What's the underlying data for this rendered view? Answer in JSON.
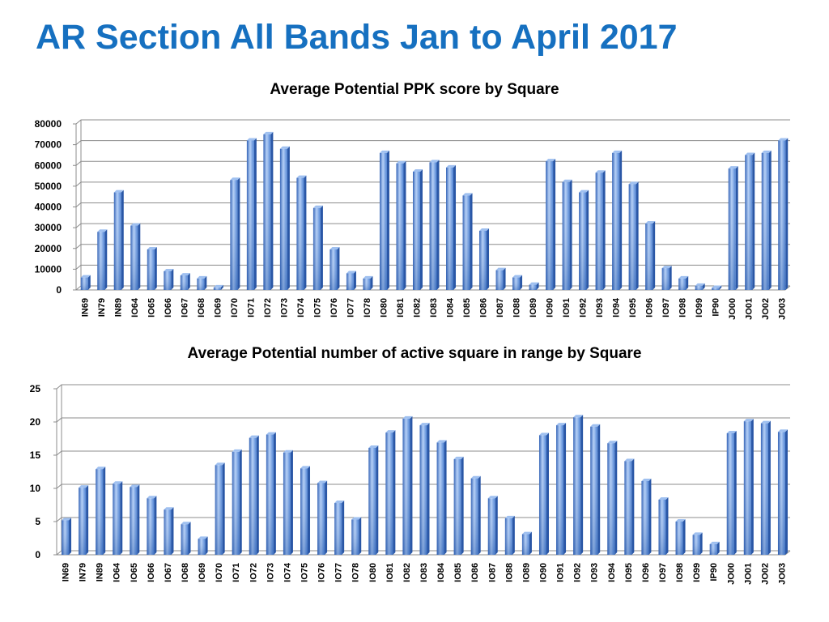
{
  "slide": {
    "title": "AR Section All Bands Jan to April 2017"
  },
  "colors": {
    "title": "#1670c0",
    "bar_light": "#b5d0f7",
    "bar_mid": "#5d8fdf",
    "bar_dark": "#2e5fb5",
    "grid": "#8c8c8c"
  },
  "chart_data": [
    {
      "type": "bar",
      "title": "Average Potential PPK score by Square",
      "xlabel": "",
      "ylabel": "",
      "ylim": [
        0,
        80000
      ],
      "yticks": [
        0,
        10000,
        20000,
        30000,
        40000,
        50000,
        60000,
        70000,
        80000
      ],
      "grid": true,
      "categories": [
        "IN69",
        "IN79",
        "IN89",
        "IO64",
        "IO65",
        "IO66",
        "IO67",
        "IO68",
        "IO69",
        "IO70",
        "IO71",
        "IO72",
        "IO73",
        "IO74",
        "IO75",
        "IO76",
        "IO77",
        "IO78",
        "IO80",
        "IO81",
        "IO82",
        "IO83",
        "IO84",
        "IO85",
        "IO86",
        "IO87",
        "IO88",
        "IO89",
        "IO90",
        "IO91",
        "IO92",
        "IO93",
        "IO94",
        "IO95",
        "IO96",
        "IO97",
        "IO98",
        "IO99",
        "IP90",
        "JO00",
        "JO01",
        "JO02",
        "JO03"
      ],
      "values": [
        6000,
        28000,
        47000,
        31000,
        19500,
        9000,
        7000,
        5500,
        1200,
        53000,
        72000,
        75000,
        68000,
        54000,
        39500,
        19500,
        8000,
        5500,
        66000,
        61000,
        57000,
        61500,
        59000,
        45500,
        28500,
        9500,
        6000,
        2500,
        62000,
        52000,
        47000,
        56500,
        66000,
        51000,
        32000,
        10500,
        5500,
        2000,
        1000,
        58500,
        65000,
        66000,
        72000
      ]
    },
    {
      "type": "bar",
      "title": "Average Potential number of active square in range by Square",
      "xlabel": "",
      "ylabel": "",
      "ylim": [
        0,
        25
      ],
      "yticks": [
        0,
        5,
        10,
        15,
        20,
        25
      ],
      "grid": true,
      "categories": [
        "IN69",
        "IN79",
        "IN89",
        "IO64",
        "IO65",
        "IO66",
        "IO67",
        "IO68",
        "IO69",
        "IO70",
        "IO71",
        "IO72",
        "IO73",
        "IO74",
        "IO75",
        "IO76",
        "IO77",
        "IO78",
        "IO80",
        "IO81",
        "IO82",
        "IO83",
        "IO84",
        "IO85",
        "IO86",
        "IO87",
        "IO88",
        "IO89",
        "IO90",
        "IO91",
        "IO92",
        "IO93",
        "IO94",
        "IO95",
        "IO96",
        "IO97",
        "IO98",
        "IO99",
        "IP90",
        "JO00",
        "JO01",
        "JO02",
        "JO03"
      ],
      "values": [
        5.2,
        10.1,
        12.9,
        10.7,
        10.2,
        8.5,
        6.8,
        4.6,
        2.4,
        13.5,
        15.5,
        17.6,
        18.1,
        15.4,
        13.0,
        10.8,
        7.8,
        5.3,
        16.1,
        18.4,
        20.5,
        19.5,
        16.9,
        14.4,
        11.5,
        8.5,
        5.5,
        3.1,
        18.0,
        19.5,
        20.7,
        19.3,
        16.8,
        14.1,
        11.1,
        8.3,
        5.0,
        3.0,
        1.6,
        18.3,
        20.1,
        19.8,
        18.5
      ]
    }
  ]
}
